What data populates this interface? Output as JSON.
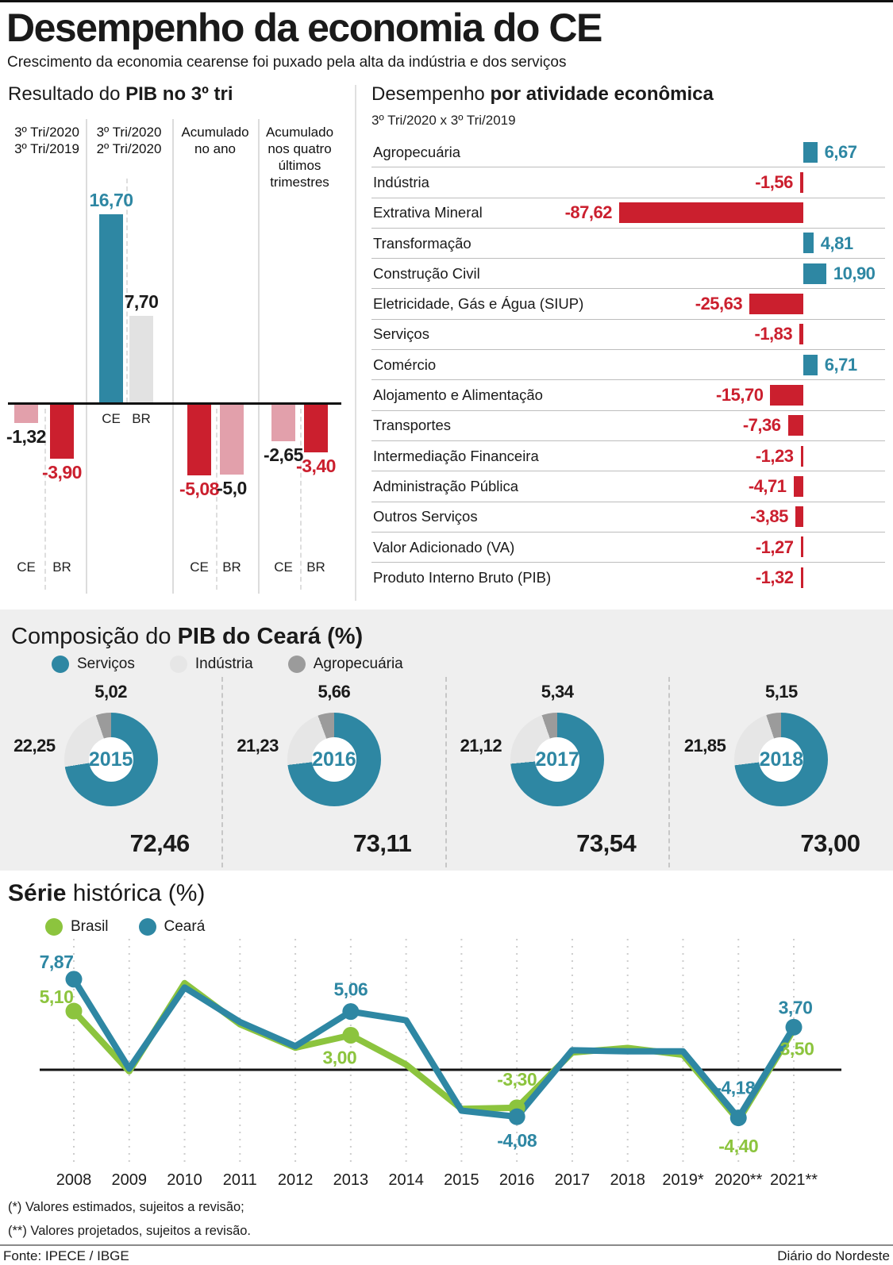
{
  "header": {
    "title": "Desempenho da economia do CE",
    "subtitle": "Crescimento da economia cearense foi puxado pela alta da indústria e dos serviços"
  },
  "pib": {
    "title_regular": "Resultado do ",
    "title_bold": "PIB no 3º tri"
  },
  "activity": {
    "title_regular": "Desempenho ",
    "title_bold": "por atividade econômica",
    "subtitle": "3º Tri/2020 x 3º Tri/2019"
  },
  "composition": {
    "title_regular": "Composição do ",
    "title_bold": "PIB do Ceará (%)",
    "legend": [
      {
        "label": "Serviços",
        "color": "#2e87a3"
      },
      {
        "label": "Indústria",
        "color": "#e6e6e6"
      },
      {
        "label": "Agropecuária",
        "color": "#9b9b9b"
      }
    ]
  },
  "series": {
    "title_bold": "Série",
    "title_regular": " histórica (%)",
    "legend": [
      {
        "label": "Brasil",
        "color": "#8cc43e"
      },
      {
        "label": "Ceará",
        "color": "#2e87a3"
      }
    ]
  },
  "footnotes": [
    "(*) Valores estimados, sujeitos a revisão;",
    "(**) Valores projetados, sujeitos a revisão."
  ],
  "footer": {
    "source": "Fonte: IPECE / IBGE",
    "credit": "Diário do Nordeste"
  },
  "palette": {
    "teal": "#2e87a3",
    "red": "#cb1f2e",
    "pink": "#e2a0ab",
    "gray": "#e2e2e2",
    "green": "#8cc43e",
    "dark": "#1a1a1a",
    "donut_light": "#e6e6e6",
    "donut_mid": "#9b9b9b"
  },
  "chart_data": [
    {
      "id": "resultado_pib",
      "type": "bar",
      "title": "Resultado do PIB no 3º tri",
      "unit": "%",
      "groups": [
        {
          "header_lines": [
            "3º Tri/2020",
            "3º Tri/2019"
          ],
          "bars": [
            {
              "entity": "CE",
              "value": -1.32,
              "display": "-1,32",
              "bar_color": "pink",
              "label_color": "dark"
            },
            {
              "entity": "BR",
              "value": -3.9,
              "display": "-3,90",
              "bar_color": "red",
              "label_color": "red"
            }
          ]
        },
        {
          "header_lines": [
            "3º Tri/2020",
            "2º Tri/2020"
          ],
          "bars": [
            {
              "entity": "CE",
              "value": 16.7,
              "display": "16,70",
              "bar_color": "teal",
              "label_color": "teal"
            },
            {
              "entity": "BR",
              "value": 7.7,
              "display": "7,70",
              "bar_color": "gray",
              "label_color": "dark"
            }
          ]
        },
        {
          "header_lines": [
            "Acumulado",
            "no ano"
          ],
          "bars": [
            {
              "entity": "CE",
              "value": -5.08,
              "display": "-5,08",
              "bar_color": "red",
              "label_color": "red"
            },
            {
              "entity": "BR",
              "value": -5.0,
              "display": "-5,0",
              "bar_color": "pink",
              "label_color": "dark"
            }
          ]
        },
        {
          "header_lines": [
            "Acumulado",
            "nos quatro",
            "últimos",
            "trimestres"
          ],
          "bars": [
            {
              "entity": "CE",
              "value": -2.65,
              "display": "-2,65",
              "bar_color": "pink",
              "label_color": "dark"
            },
            {
              "entity": "BR",
              "value": -3.4,
              "display": "-3,40",
              "bar_color": "red",
              "label_color": "red"
            }
          ]
        }
      ]
    },
    {
      "id": "atividade",
      "type": "bar",
      "orientation": "horizontal",
      "title": "Desempenho por atividade econômica",
      "subtitle": "3º Tri/2020 x 3º Tri/2019",
      "unit": "%",
      "rows": [
        {
          "label": "Agropecuária",
          "value": 6.67,
          "display": "6,67"
        },
        {
          "label": "Indústria",
          "value": -1.56,
          "display": "-1,56"
        },
        {
          "label": "Extrativa Mineral",
          "value": -87.62,
          "display": "-87,62"
        },
        {
          "label": "Transformação",
          "value": 4.81,
          "display": "4,81"
        },
        {
          "label": "Construção Civil",
          "value": 10.9,
          "display": "10,90"
        },
        {
          "label": "Eletricidade, Gás e Água (SIUP)",
          "value": -25.63,
          "display": "-25,63"
        },
        {
          "label": "Serviços",
          "value": -1.83,
          "display": "-1,83"
        },
        {
          "label": "Comércio",
          "value": 6.71,
          "display": "6,71"
        },
        {
          "label": "Alojamento e Alimentação",
          "value": -15.7,
          "display": "-15,70"
        },
        {
          "label": "Transportes",
          "value": -7.36,
          "display": "-7,36"
        },
        {
          "label": "Intermediação Financeira",
          "value": -1.23,
          "display": "-1,23"
        },
        {
          "label": "Administração Pública",
          "value": -4.71,
          "display": "-4,71"
        },
        {
          "label": "Outros Serviços",
          "value": -3.85,
          "display": "-3,85"
        },
        {
          "label": "Valor Adicionado (VA)",
          "value": -1.27,
          "display": "-1,27"
        },
        {
          "label": "Produto Interno Bruto (PIB)",
          "value": -1.32,
          "display": "-1,32"
        }
      ]
    },
    {
      "id": "composicao",
      "type": "pie",
      "title": "Composição do PIB do Ceará (%)",
      "slices_order": [
        "Serviços",
        "Indústria",
        "Agropecuária"
      ],
      "donuts": [
        {
          "year": "2015",
          "values": {
            "servicos": 72.46,
            "industria": 22.25,
            "agropecuaria": 5.02
          },
          "displays": {
            "servicos": "72,46",
            "industria": "22,25",
            "agropecuaria": "5,02"
          }
        },
        {
          "year": "2016",
          "values": {
            "servicos": 73.11,
            "industria": 21.23,
            "agropecuaria": 5.66
          },
          "displays": {
            "servicos": "73,11",
            "industria": "21,23",
            "agropecuaria": "5,66"
          }
        },
        {
          "year": "2017",
          "values": {
            "servicos": 73.54,
            "industria": 21.12,
            "agropecuaria": 5.34
          },
          "displays": {
            "servicos": "73,54",
            "industria": "21,12",
            "agropecuaria": "5,34"
          }
        },
        {
          "year": "2018",
          "values": {
            "servicos": 73.0,
            "industria": 21.85,
            "agropecuaria": 5.15
          },
          "displays": {
            "servicos": "73,00",
            "industria": "21,85",
            "agropecuaria": "5,15"
          }
        }
      ]
    },
    {
      "id": "serie_historica",
      "type": "line",
      "title": "Série histórica (%)",
      "x_labels": [
        "2008",
        "2009",
        "2010",
        "2011",
        "2012",
        "2013",
        "2014",
        "2015",
        "2016",
        "2017",
        "2018",
        "2019*",
        "2020**",
        "2021**"
      ],
      "ylim": [
        -8,
        9
      ],
      "grid": "vertical-dashed",
      "zero_line": true,
      "legend_position": "top-left",
      "series": [
        {
          "name": "Brasil",
          "color": "#8cc43e",
          "values": [
            5.1,
            -0.13,
            7.53,
            3.95,
            1.92,
            3.0,
            0.45,
            -3.4,
            -3.3,
            1.5,
            1.9,
            1.3,
            -4.4,
            3.5
          ],
          "markers": [
            0,
            5,
            8
          ],
          "annotations": [
            {
              "i": 0,
              "text": "5,10",
              "dx": -22,
              "dy": -10
            },
            {
              "i": 5,
              "text": "3,00",
              "dx": -14,
              "dy": 36
            },
            {
              "i": 8,
              "text": "-3,30",
              "dx": 0,
              "dy": -28
            },
            {
              "i": 12,
              "text": "-4,40",
              "dx": 0,
              "dy": 40
            },
            {
              "i": 13,
              "text": "3,50",
              "dx": 4,
              "dy": 32
            }
          ]
        },
        {
          "name": "Ceará",
          "color": "#2e87a3",
          "values": [
            7.87,
            0.1,
            7.15,
            4.15,
            2.05,
            5.06,
            4.3,
            -3.55,
            -4.08,
            1.7,
            1.6,
            1.6,
            -4.18,
            3.7
          ],
          "markers": [
            0,
            5,
            8,
            12,
            13
          ],
          "annotations": [
            {
              "i": 0,
              "text": "7,87",
              "dx": -22,
              "dy": -14
            },
            {
              "i": 5,
              "text": "5,06",
              "dx": 0,
              "dy": -20
            },
            {
              "i": 8,
              "text": "-4,08",
              "dx": 0,
              "dy": 38
            },
            {
              "i": 12,
              "text": "-4,18",
              "dx": -4,
              "dy": -30
            },
            {
              "i": 13,
              "text": "3,70",
              "dx": 2,
              "dy": -17
            }
          ]
        }
      ]
    }
  ]
}
